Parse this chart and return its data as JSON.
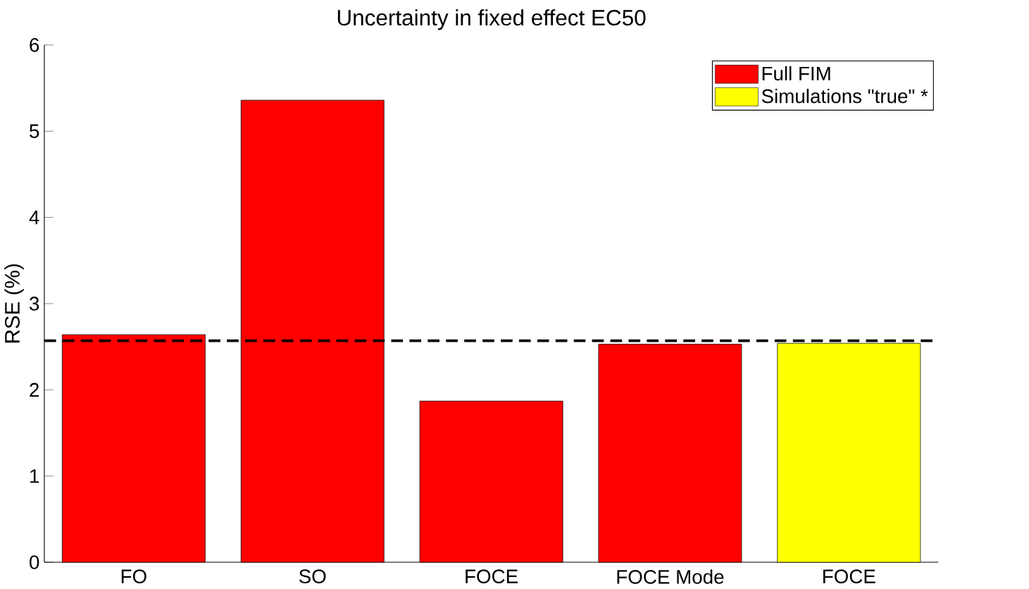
{
  "chart_data": {
    "type": "bar",
    "title": "Uncertainty in fixed effect EC50",
    "ylabel": "RSE (%)",
    "categories": [
      "FO",
      "SO",
      "FOCE",
      "FOCE Mode",
      "FOCE"
    ],
    "series": [
      {
        "name": "Full FIM",
        "color": "#ff0000",
        "values": [
          2.64,
          5.36,
          1.87,
          2.53,
          null
        ]
      },
      {
        "name": "Simulations \"true\" *",
        "color": "#ffff00",
        "values": [
          null,
          null,
          null,
          null,
          2.54
        ]
      }
    ],
    "ylim": [
      0,
      6
    ],
    "yticks": [
      0,
      1,
      2,
      3,
      4,
      5,
      6
    ],
    "ref_lines": [
      {
        "axis": "y",
        "value": 2.57,
        "line_style": "dashed",
        "color": "#000000"
      }
    ],
    "legend": "top right",
    "grid": false
  }
}
